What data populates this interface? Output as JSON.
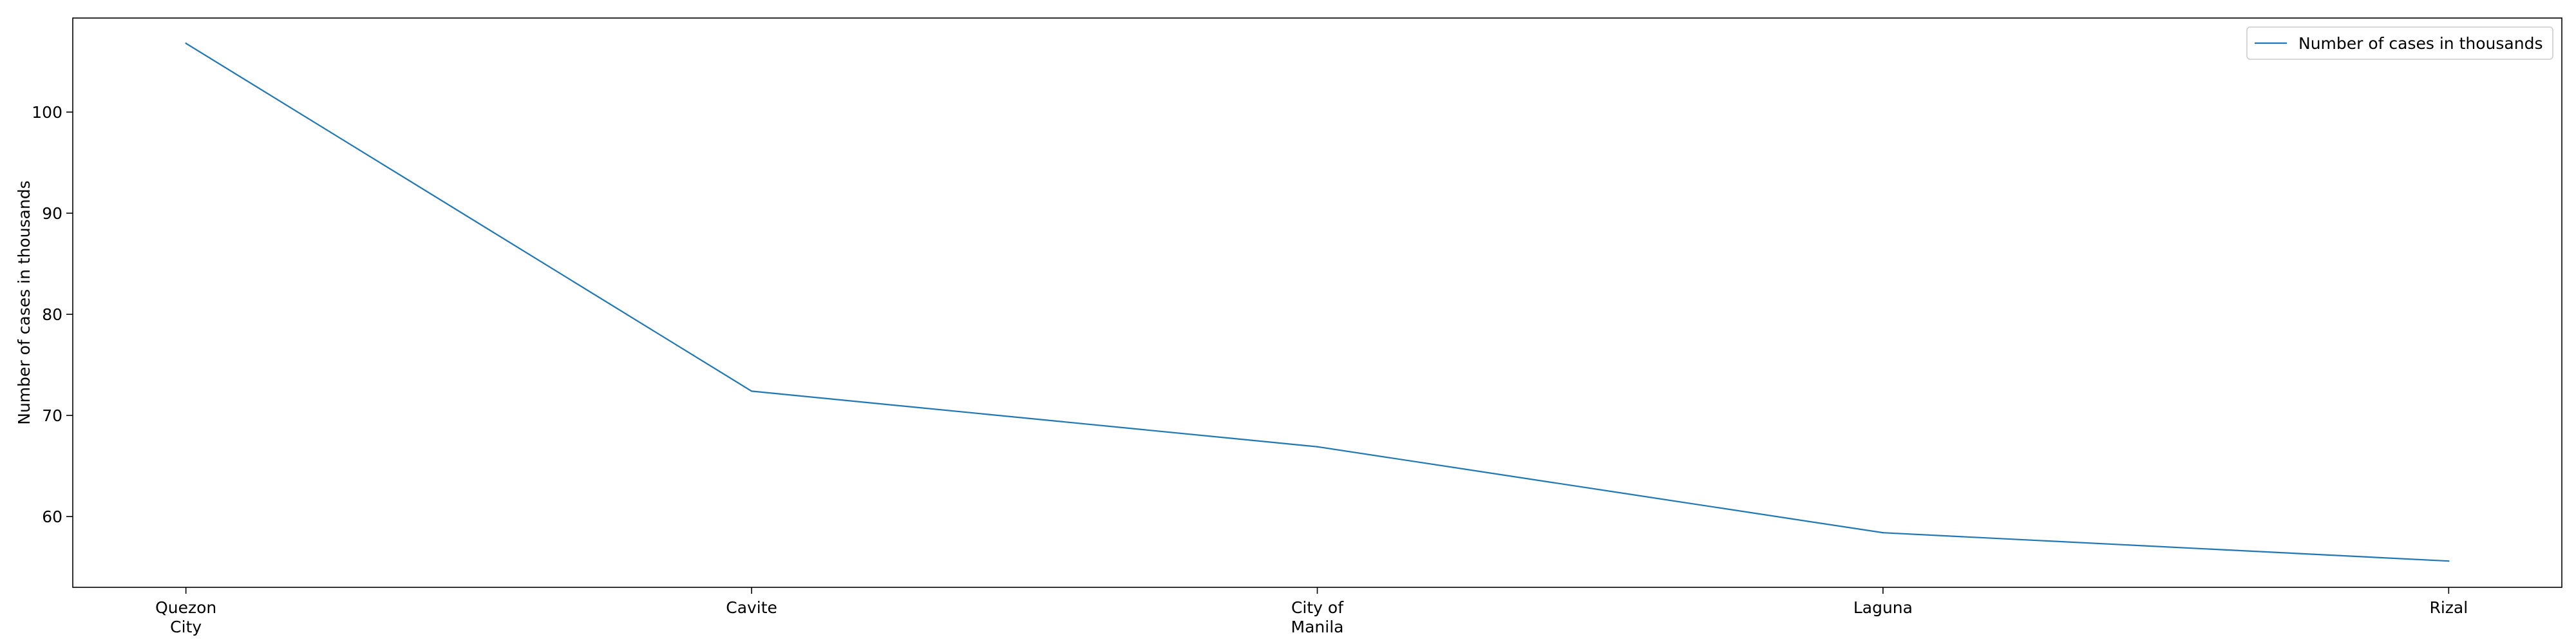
{
  "chart_data": {
    "type": "line",
    "categories": [
      "Quezon City",
      "Cavite",
      "City of Manila",
      "Laguna",
      "Rizal"
    ],
    "category_lines": [
      [
        "Quezon",
        "City"
      ],
      [
        "Cavite"
      ],
      [
        "City of",
        "Manila"
      ],
      [
        "Laguna"
      ],
      [
        "Rizal"
      ]
    ],
    "series": [
      {
        "name": "Number of cases in thousands",
        "values": [
          106.8,
          72.4,
          66.9,
          58.4,
          55.6
        ],
        "color": "#1f77b4"
      }
    ],
    "title": "",
    "xlabel": "",
    "ylabel": "Number of cases in thousands",
    "ylim": [
      53.0,
      109.3
    ],
    "yticks": [
      60,
      70,
      80,
      90,
      100
    ],
    "grid": false,
    "legend_position": "top-right"
  }
}
